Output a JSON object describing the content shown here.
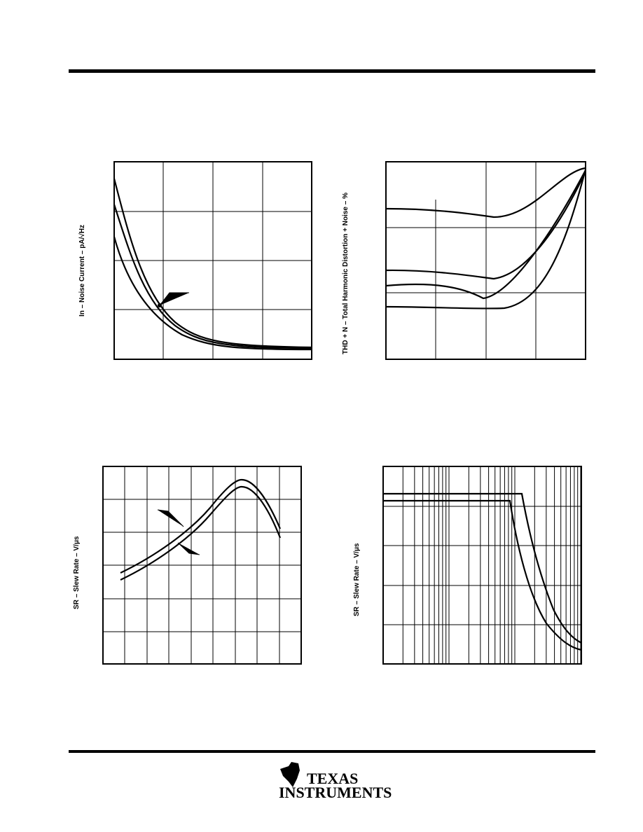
{
  "plots": [
    {
      "y_label": "In – Noise Current – pA/√Hz"
    },
    {
      "y_label": "THD + N – Total Harmonic Distortion + Noise – %"
    },
    {
      "y_label": "SR – Slew Rate – V/μs"
    },
    {
      "y_label": "SR – Slew Rate – V/μs"
    }
  ],
  "logo": {
    "line1": "TEXAS",
    "line2": "INSTRUMENTS"
  }
}
